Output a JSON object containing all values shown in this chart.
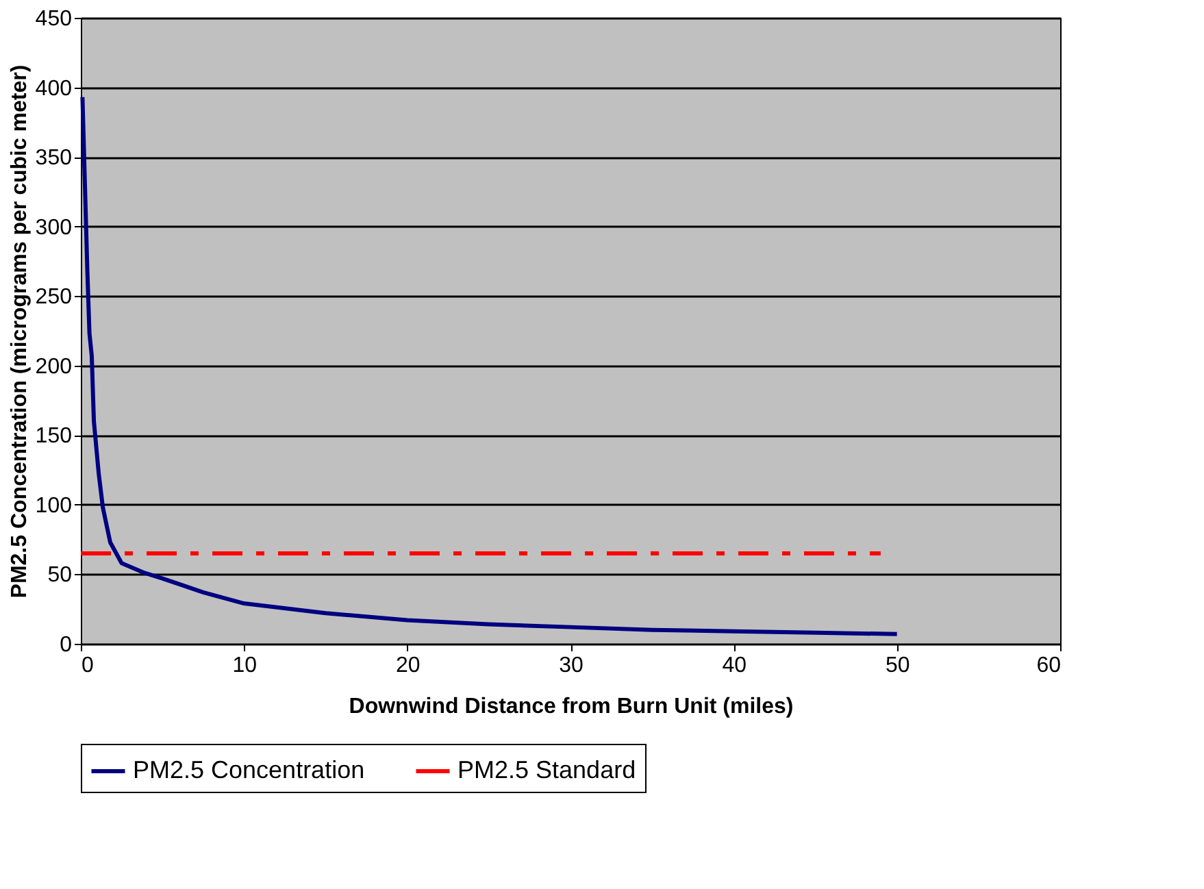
{
  "chart_data": {
    "type": "line",
    "xlabel": "Downwind Distance from Burn Unit (miles)",
    "ylabel": "PM2.5 Concentration (micrograms per cubic meter)",
    "xlim": [
      0,
      60
    ],
    "xticks": [
      0,
      10,
      20,
      30,
      40,
      50,
      60
    ],
    "ylim": [
      0,
      450
    ],
    "yticks": [
      0,
      50,
      100,
      150,
      200,
      250,
      300,
      350,
      400,
      450
    ],
    "grid": "y",
    "legend": "bottom",
    "marker": "none",
    "series": [
      {
        "name": "PM2.5 Concentration",
        "color": "#000080",
        "line_style": "solid",
        "x": [
          0.1,
          0.4,
          0.53,
          0.67,
          0.8,
          1.1,
          1.35,
          1.8,
          2.5,
          3.9,
          5,
          7.5,
          10,
          15,
          20,
          25,
          30,
          35,
          40,
          45,
          50
        ],
        "values": [
          393,
          268,
          223,
          207,
          160,
          122,
          98,
          73,
          58,
          51,
          47,
          37,
          29,
          22,
          17,
          14,
          12,
          10,
          9,
          8,
          7
        ]
      },
      {
        "name": "PM2.5 Standard",
        "color": "#ff0000",
        "line_style": "dashed",
        "x": [
          0,
          49
        ],
        "values": [
          65,
          65
        ]
      }
    ]
  }
}
